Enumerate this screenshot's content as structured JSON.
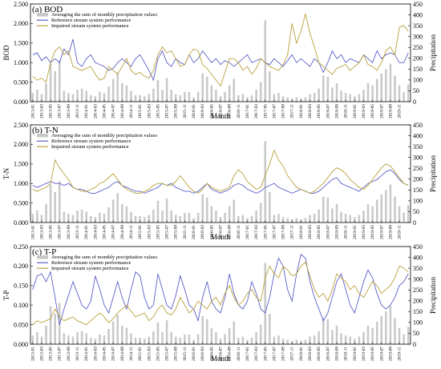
{
  "chart_data": [
    {
      "type": "line",
      "title": "(a) BOD",
      "ylabel": "BOD",
      "y2label": "Precipitation",
      "xlabel": "Month",
      "ylim": [
        0,
        2.5
      ],
      "yticks": [
        "0.000",
        "0.500",
        "1.000",
        "1.500",
        "2.000",
        "2.500"
      ],
      "y2lim": [
        0,
        450
      ],
      "y2ticks": [
        "0",
        "50",
        "100",
        "150",
        "200",
        "250",
        "300",
        "350",
        "400",
        "450"
      ],
      "legend": [
        "Averaging the sum of monthly precipitation values",
        "Reference stream system performance",
        "Impaired stream system performance"
      ],
      "series": [
        {
          "name": "Reference stream system performance",
          "color": "#5b5fc7",
          "values": [
            1.2,
            1.25,
            1.05,
            1.15,
            1.0,
            1.1,
            1.0,
            1.35,
            1.2,
            1.6,
            1.0,
            0.9,
            1.1,
            1.2,
            1.0,
            0.95,
            0.9,
            0.8,
            0.85,
            1.0,
            1.1,
            1.0,
            0.9,
            1.1,
            1.2,
            1.0,
            0.8,
            0.55,
            1.1,
            1.3,
            1.0,
            0.9,
            1.1,
            1.0,
            0.95,
            1.2,
            1.0,
            1.1,
            1.3,
            1.15,
            1.0,
            1.1,
            0.95,
            1.05,
            1.0,
            0.9,
            1.0,
            1.1,
            1.2,
            1.0,
            1.05,
            1.1,
            1.0,
            0.95,
            1.1,
            1.0,
            0.9,
            1.05,
            1.2,
            1.0,
            1.1,
            1.0,
            0.9,
            1.1,
            1.0,
            0.75,
            1.0,
            1.3,
            1.1,
            1.2,
            1.0,
            1.1,
            1.05,
            1.0,
            1.2,
            1.1,
            1.0,
            1.3,
            1.1,
            1.2,
            1.25,
            1.2,
            1.0,
            1.0,
            1.25
          ]
        },
        {
          "name": "Impaired stream system performance",
          "color": "#b8a13a",
          "values": [
            0.65,
            0.55,
            0.6,
            0.5,
            1.0,
            1.3,
            1.4,
            1.2,
            1.3,
            0.9,
            0.85,
            0.8,
            0.85,
            0.9,
            0.7,
            0.55,
            0.6,
            0.9,
            0.8,
            0.7,
            0.9,
            1.1,
            0.8,
            0.7,
            0.75,
            0.65,
            0.6,
            0.8,
            1.2,
            1.4,
            1.25,
            1.3,
            1.1,
            0.9,
            0.95,
            1.2,
            1.35,
            1.3,
            0.95,
            0.85,
            0.7,
            0.55,
            0.4,
            0.75,
            1.1,
            1.1,
            1.0,
            0.8,
            0.9,
            0.7,
            0.85,
            1.1,
            1.0,
            0.9,
            0.85,
            0.8,
            0.95,
            1.2,
            2.0,
            1.5,
            1.8,
            2.25,
            1.75,
            1.4,
            1.0,
            0.9,
            0.8,
            0.7,
            0.85,
            0.9,
            0.95,
            0.8,
            0.9,
            1.0,
            1.2,
            0.95,
            0.9,
            0.8,
            1.0,
            1.3,
            1.4,
            1.2,
            1.9,
            1.95,
            1.8
          ]
        },
        {
          "name": "Averaging the sum of monthly precipitation values",
          "color": "#c8c8c8",
          "axis": "right",
          "values": [
            40,
            55,
            35,
            85,
            175,
            140,
            190,
            50,
            40,
            35,
            55,
            60,
            50,
            30,
            25,
            45,
            40,
            70,
            105,
            135,
            85,
            75,
            50,
            30,
            30,
            25,
            35,
            60,
            100,
            55,
            110,
            55,
            35,
            30,
            45,
            45,
            20,
            45,
            130,
            115,
            75,
            55,
            25,
            45,
            75,
            105,
            30,
            35,
            20,
            30,
            55,
            90,
            375,
            140,
            35,
            40,
            25,
            20,
            15,
            20,
            15,
            20,
            35,
            40,
            60,
            120,
            115,
            65,
            85,
            50,
            40,
            35,
            25,
            35,
            55,
            85,
            75,
            105,
            130,
            150,
            175,
            120,
            75,
            45,
            80
          ]
        }
      ]
    },
    {
      "type": "line",
      "title": "(b) T-N",
      "ylabel": "T-N",
      "y2label": "Precipitation",
      "xlabel": "Month",
      "ylim": [
        0,
        2.5
      ],
      "yticks": [
        "0.000",
        "0.500",
        "1.000",
        "1.500",
        "2.000",
        "2.500"
      ],
      "y2lim": [
        0,
        450
      ],
      "y2ticks": [
        "0",
        "50",
        "100",
        "150",
        "200",
        "250",
        "300",
        "350",
        "400",
        "450"
      ],
      "legend": [
        "Averaging the sum of monthly precipitation values",
        "Reference stream system performance",
        "Impaired stream system performance"
      ],
      "series": [
        {
          "name": "Reference stream system performance",
          "color": "#5b5fc7",
          "values": [
            0.95,
            0.9,
            0.95,
            1.0,
            1.05,
            1.0,
            1.0,
            0.95,
            1.0,
            0.9,
            0.85,
            0.85,
            0.8,
            0.75,
            0.75,
            0.8,
            0.85,
            0.9,
            1.0,
            1.05,
            0.95,
            0.9,
            0.85,
            0.8,
            0.8,
            0.75,
            0.8,
            0.85,
            0.9,
            1.0,
            0.95,
            1.0,
            0.9,
            0.85,
            0.8,
            0.8,
            0.75,
            0.8,
            0.9,
            1.0,
            0.85,
            0.8,
            0.75,
            0.8,
            0.85,
            0.95,
            1.0,
            0.95,
            0.85,
            0.8,
            0.75,
            0.8,
            0.9,
            0.95,
            1.0,
            0.9,
            0.85,
            0.8,
            0.75,
            0.8,
            0.85,
            0.8,
            0.75,
            0.75,
            0.8,
            0.9,
            1.0,
            1.1,
            1.15,
            1.0,
            0.95,
            0.9,
            0.85,
            0.8,
            0.9,
            1.0,
            1.05,
            1.1,
            1.2,
            1.3,
            1.35,
            1.25,
            1.1,
            1.0,
            0.95
          ]
        },
        {
          "name": "Impaired stream system performance",
          "color": "#b8a13a",
          "values": [
            0.85,
            0.8,
            0.85,
            0.9,
            1.0,
            1.6,
            1.4,
            1.25,
            1.1,
            0.9,
            0.85,
            0.8,
            0.8,
            0.85,
            0.9,
            1.0,
            1.05,
            1.15,
            1.25,
            1.1,
            0.95,
            0.85,
            0.8,
            0.75,
            0.75,
            0.8,
            0.85,
            0.95,
            1.0,
            1.0,
            0.95,
            0.95,
            1.05,
            1.2,
            1.05,
            0.9,
            0.8,
            0.75,
            0.85,
            1.0,
            0.9,
            0.85,
            0.8,
            0.85,
            0.9,
            1.2,
            1.35,
            1.25,
            1.05,
            0.95,
            0.85,
            0.9,
            1.2,
            1.5,
            1.85,
            1.6,
            1.45,
            1.2,
            1.05,
            0.9,
            0.85,
            0.8,
            0.75,
            0.8,
            0.9,
            1.0,
            1.15,
            1.3,
            1.4,
            1.35,
            1.25,
            1.1,
            1.0,
            0.9,
            0.85,
            0.95,
            1.1,
            1.25,
            1.4,
            1.5,
            1.45,
            1.3,
            1.15,
            1.0,
            0.95
          ]
        },
        {
          "name": "Averaging the sum of monthly precipitation values",
          "color": "#c8c8c8",
          "axis": "right",
          "values": [
            40,
            55,
            35,
            85,
            175,
            140,
            190,
            50,
            40,
            35,
            55,
            60,
            50,
            30,
            25,
            45,
            40,
            70,
            105,
            135,
            85,
            75,
            50,
            30,
            30,
            25,
            35,
            60,
            100,
            55,
            110,
            55,
            35,
            30,
            45,
            45,
            20,
            45,
            130,
            115,
            75,
            55,
            25,
            45,
            75,
            105,
            30,
            35,
            20,
            30,
            55,
            90,
            375,
            140,
            35,
            40,
            25,
            20,
            15,
            20,
            15,
            20,
            35,
            40,
            60,
            120,
            115,
            65,
            85,
            50,
            40,
            35,
            25,
            35,
            55,
            85,
            75,
            105,
            130,
            150,
            175,
            120,
            75,
            45,
            80
          ]
        }
      ]
    },
    {
      "type": "line",
      "title": "(c) T-P",
      "ylabel": "T-P",
      "y2label": "Precipitation",
      "xlabel": "Month",
      "ylim": [
        0,
        0.25
      ],
      "yticks": [
        "0.000",
        "0.050",
        "0.100",
        "0.150",
        "0.200",
        "0.250"
      ],
      "y2lim": [
        0,
        450
      ],
      "y2ticks": [
        "0",
        "50",
        "100",
        "150",
        "200",
        "250",
        "300",
        "350",
        "400",
        "450"
      ],
      "legend": [
        "Averaging the sum of monthly precipitation values",
        "Reference stream system performance",
        "Impaired stream system performance"
      ],
      "series": [
        {
          "name": "Reference stream system performance",
          "color": "#5b5fc7",
          "values": [
            0.14,
            0.175,
            0.18,
            0.16,
            0.185,
            0.12,
            0.05,
            0.09,
            0.125,
            0.16,
            0.13,
            0.1,
            0.09,
            0.11,
            0.175,
            0.14,
            0.1,
            0.08,
            0.12,
            0.16,
            0.12,
            0.09,
            0.14,
            0.185,
            0.175,
            0.12,
            0.09,
            0.1,
            0.18,
            0.14,
            0.1,
            0.09,
            0.125,
            0.175,
            0.14,
            0.1,
            0.09,
            0.06,
            0.12,
            0.16,
            0.11,
            0.09,
            0.08,
            0.12,
            0.18,
            0.13,
            0.1,
            0.09,
            0.11,
            0.16,
            0.13,
            0.09,
            0.08,
            0.12,
            0.18,
            0.22,
            0.2,
            0.14,
            0.11,
            0.18,
            0.23,
            0.22,
            0.16,
            0.12,
            0.09,
            0.06,
            0.08,
            0.12,
            0.16,
            0.18,
            0.14,
            0.1,
            0.08,
            0.12,
            0.16,
            0.19,
            0.17,
            0.13,
            0.1,
            0.09,
            0.1,
            0.12,
            0.15,
            0.16,
            0.18
          ]
        },
        {
          "name": "Impaired stream system performance",
          "color": "#b8a13a",
          "values": [
            0.05,
            0.06,
            0.055,
            0.06,
            0.065,
            0.09,
            0.07,
            0.06,
            0.065,
            0.07,
            0.06,
            0.055,
            0.05,
            0.06,
            0.07,
            0.08,
            0.07,
            0.055,
            0.065,
            0.08,
            0.09,
            0.1,
            0.085,
            0.07,
            0.075,
            0.08,
            0.06,
            0.07,
            0.09,
            0.1,
            0.08,
            0.075,
            0.09,
            0.12,
            0.1,
            0.08,
            0.09,
            0.11,
            0.1,
            0.09,
            0.11,
            0.12,
            0.1,
            0.13,
            0.15,
            0.12,
            0.1,
            0.11,
            0.13,
            0.14,
            0.12,
            0.11,
            0.17,
            0.2,
            0.18,
            0.17,
            0.2,
            0.19,
            0.175,
            0.18,
            0.2,
            0.21,
            0.175,
            0.14,
            0.12,
            0.13,
            0.11,
            0.14,
            0.18,
            0.17,
            0.16,
            0.14,
            0.15,
            0.13,
            0.12,
            0.14,
            0.16,
            0.15,
            0.13,
            0.14,
            0.15,
            0.17,
            0.2,
            0.195,
            0.185
          ]
        },
        {
          "name": "Averaging the sum of monthly precipitation values",
          "color": "#c8c8c8",
          "axis": "right",
          "values": [
            40,
            55,
            35,
            85,
            175,
            140,
            190,
            50,
            40,
            35,
            55,
            60,
            50,
            30,
            25,
            45,
            40,
            70,
            105,
            135,
            85,
            75,
            50,
            30,
            30,
            25,
            35,
            60,
            100,
            55,
            110,
            55,
            35,
            30,
            45,
            45,
            20,
            45,
            130,
            115,
            75,
            55,
            25,
            45,
            75,
            105,
            30,
            35,
            20,
            30,
            55,
            90,
            375,
            140,
            35,
            40,
            25,
            20,
            15,
            20,
            15,
            20,
            35,
            40,
            60,
            120,
            115,
            65,
            85,
            50,
            40,
            35,
            25,
            35,
            55,
            85,
            75,
            105,
            130,
            150,
            175,
            120,
            75,
            45,
            80
          ]
        }
      ]
    }
  ],
  "x_tick_labels": [
    "2013-01",
    "2013-03",
    "2013-05",
    "2013-07",
    "2013-09",
    "2013-11",
    "2014-01",
    "2014-03",
    "2014-05",
    "2014-07",
    "2014-09",
    "2014-11",
    "2015-01",
    "2015-03",
    "2015-05",
    "2015-07",
    "2015-09",
    "2015-11",
    "2016-01",
    "2016-03",
    "2016-05",
    "2016-07",
    "2016-09",
    "2016-11",
    "2017-01",
    "2017-03",
    "2017-05",
    "2017-07",
    "2017-09",
    "2017-11",
    "2018-01",
    "2018-03",
    "2018-05",
    "2018-07",
    "2018-09",
    "2018-11",
    "2019-01",
    "2019-03",
    "2019-05",
    "2019-07",
    "2019-09",
    "2019-11"
  ]
}
